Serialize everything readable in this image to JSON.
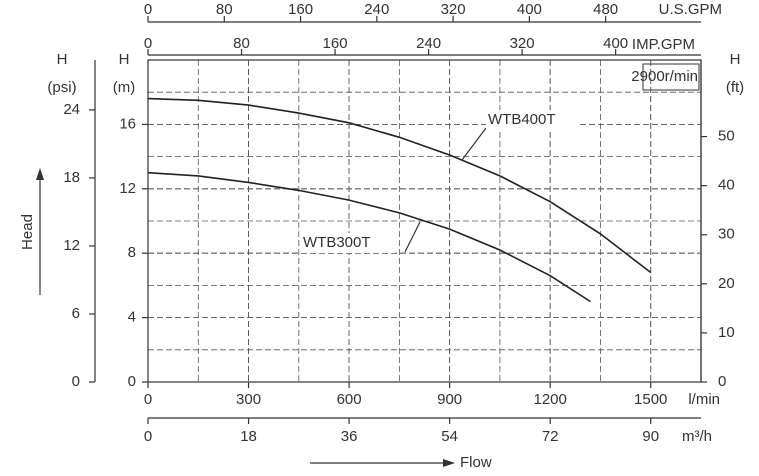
{
  "chart_data": {
    "type": "line",
    "annotation": "2900r/min",
    "xlim": [
      0,
      1650
    ],
    "xticks": [
      0,
      300,
      600,
      900,
      1200,
      1500
    ],
    "xlabel": "l/min",
    "ylim": [
      0,
      20
    ],
    "yticks": [
      0,
      4,
      8,
      12,
      16
    ],
    "ylabel": {
      "head": "H",
      "unit": "(m)"
    },
    "grid": true,
    "minor_divisions": 2,
    "color": "#222222",
    "series": [
      {
        "name": "WTB400T",
        "x": [
          0,
          150,
          300,
          450,
          600,
          750,
          900,
          1050,
          1200,
          1350,
          1500
        ],
        "values": [
          17.6,
          17.5,
          17.2,
          16.7,
          16.1,
          15.2,
          14.1,
          12.8,
          11.2,
          9.2,
          6.8
        ]
      },
      {
        "name": "WTB300T",
        "x": [
          0,
          150,
          300,
          450,
          600,
          750,
          900,
          1050,
          1200,
          1320
        ],
        "values": [
          13.0,
          12.8,
          12.4,
          11.9,
          11.3,
          10.5,
          9.5,
          8.2,
          6.6,
          5.0
        ]
      }
    ],
    "psi_axis": {
      "head": "H",
      "unit": "(psi)",
      "lim": [
        0,
        28.4
      ],
      "ticks": [
        0,
        6,
        12,
        18,
        24
      ]
    },
    "ft_axis": {
      "head": "H",
      "unit": "(ft)",
      "lim": [
        0,
        65.6
      ],
      "ticks": [
        0,
        10,
        20,
        30,
        40,
        50
      ]
    },
    "m3h_axis": {
      "label": "m³/h",
      "lim": [
        0,
        99
      ],
      "ticks": [
        0,
        18,
        36,
        54,
        72,
        90
      ]
    },
    "usgpm_axis": {
      "label": "U.S.GPM",
      "lim": [
        0,
        580
      ],
      "ticks": [
        0,
        80,
        160,
        240,
        320,
        400,
        480
      ]
    },
    "impgpm_axis": {
      "label": "IMP.GPM",
      "lim": [
        0,
        473
      ],
      "ticks": [
        0,
        80,
        160,
        240,
        320,
        400
      ]
    },
    "y_title": "Head",
    "x_title": "Flow"
  }
}
